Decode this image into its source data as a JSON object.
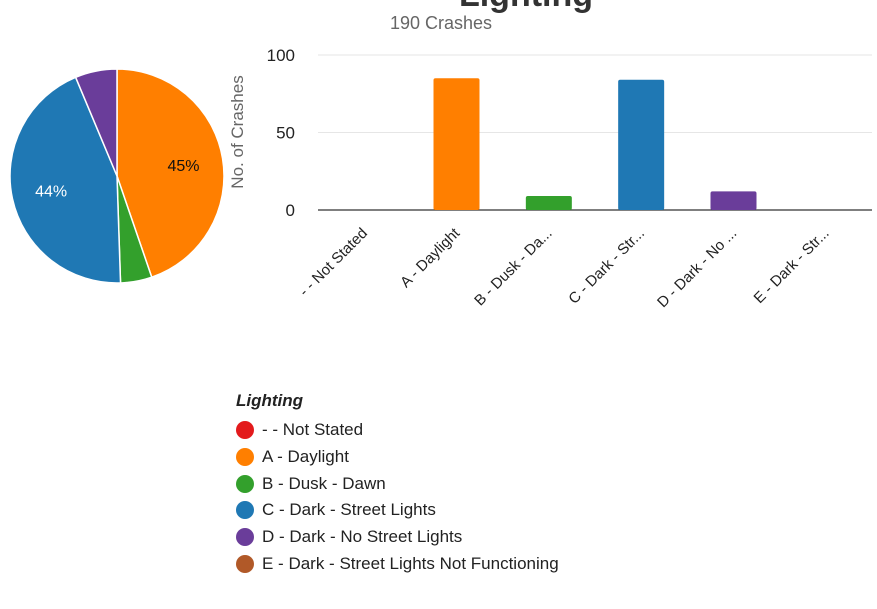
{
  "chart_data": [
    {
      "type": "pie",
      "title": "",
      "slices": [
        {
          "label": "- - Not Stated",
          "value": 0,
          "color": "#e31a1c"
        },
        {
          "label": "A - Daylight",
          "value": 85,
          "color": "#ff7f00",
          "pct_label": "45%"
        },
        {
          "label": "B - Dusk - Dawn",
          "value": 9,
          "color": "#33a02c"
        },
        {
          "label": "C - Dark - Street Lights",
          "value": 84,
          "color": "#1f78b4",
          "pct_label": "44%"
        },
        {
          "label": "D - Dark - No Street Lights",
          "value": 12,
          "color": "#6a3d9a"
        },
        {
          "label": "E - Dark - Street Lights Not Functioning",
          "value": 0,
          "color": "#b15928"
        }
      ]
    },
    {
      "type": "bar",
      "title": "Lighting",
      "subtitle": "190 Crashes",
      "categories": [
        "- - Not Stated",
        "A - Daylight",
        "B - Dusk - Da...",
        "C - Dark - Str...",
        "D - Dark - No ...",
        "E - Dark - Str..."
      ],
      "values": [
        0,
        85,
        9,
        84,
        12,
        0
      ],
      "colors": [
        "#e31a1c",
        "#ff7f00",
        "#33a02c",
        "#1f78b4",
        "#6a3d9a",
        "#b15928"
      ],
      "xlabel": "",
      "ylabel": "No. of Crashes",
      "ylim": [
        0,
        100
      ],
      "yticks": [
        0,
        50,
        100
      ],
      "grid": true
    }
  ],
  "legend": {
    "title": "Lighting",
    "items": [
      {
        "label": "- - Not Stated",
        "color": "#e31a1c"
      },
      {
        "label": "A - Daylight",
        "color": "#ff7f00"
      },
      {
        "label": "B - Dusk - Dawn",
        "color": "#33a02c"
      },
      {
        "label": "C - Dark - Street Lights",
        "color": "#1f78b4"
      },
      {
        "label": "D - Dark - No Street Lights",
        "color": "#6a3d9a"
      },
      {
        "label": "E - Dark - Street Lights Not Functioning",
        "color": "#b15928"
      }
    ]
  }
}
